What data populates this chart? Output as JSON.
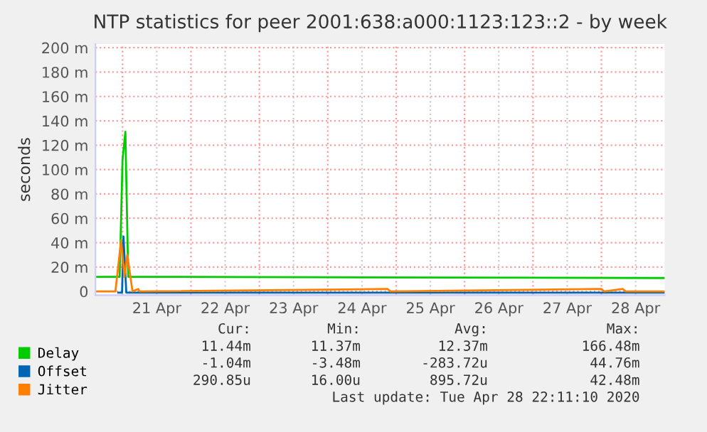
{
  "chart_data": {
    "type": "line",
    "title": "NTP statistics for peer 2001:638:a000:1123:123::2 - by week",
    "ylabel": "seconds",
    "xlim": [
      "2020-04-20T14:30",
      "2020-04-28T22:10"
    ],
    "xticks": [
      {
        "value": "2020-04-21T00:00",
        "label": null
      },
      {
        "value": "2020-04-21T12:00",
        "label": "21 Apr"
      },
      {
        "value": "2020-04-22T00:00",
        "label": null
      },
      {
        "value": "2020-04-22T12:00",
        "label": "22 Apr"
      },
      {
        "value": "2020-04-23T00:00",
        "label": null
      },
      {
        "value": "2020-04-23T12:00",
        "label": "23 Apr"
      },
      {
        "value": "2020-04-24T00:00",
        "label": null
      },
      {
        "value": "2020-04-24T12:00",
        "label": "24 Apr"
      },
      {
        "value": "2020-04-25T00:00",
        "label": null
      },
      {
        "value": "2020-04-25T12:00",
        "label": "25 Apr"
      },
      {
        "value": "2020-04-26T00:00",
        "label": null
      },
      {
        "value": "2020-04-26T12:00",
        "label": "26 Apr"
      },
      {
        "value": "2020-04-27T00:00",
        "label": null
      },
      {
        "value": "2020-04-27T12:00",
        "label": "27 Apr"
      },
      {
        "value": "2020-04-28T00:00",
        "label": null
      },
      {
        "value": "2020-04-28T12:00",
        "label": "28 Apr"
      }
    ],
    "ylim": [
      -3,
      203
    ],
    "yticks": [
      0,
      {
        "value": 20,
        "label": "20 m"
      },
      {
        "value": 40,
        "label": "40 m"
      },
      {
        "value": 60,
        "label": "60 m"
      },
      {
        "value": 80,
        "label": "80 m"
      },
      {
        "value": 100,
        "label": "100 m"
      },
      {
        "value": 120,
        "label": "120 m"
      },
      {
        "value": 140,
        "label": "140 m"
      },
      {
        "value": 160,
        "label": "160 m"
      },
      {
        "value": 180,
        "label": "180 m"
      },
      {
        "value": 200,
        "label": "200 m"
      }
    ],
    "grid": true,
    "legend": "bottom",
    "marker": "none",
    "line_style": "solid",
    "series": [
      {
        "name": "Delay",
        "color": "#00cc00",
        "x": [
          "2020-04-20T14:30",
          "2020-04-20T23:00",
          "2020-04-21T00:00",
          "2020-04-21T01:00",
          "2020-04-21T02:00",
          "2020-04-28T22:10"
        ],
        "values": [
          12,
          12,
          108,
          131,
          12,
          11
        ]
      },
      {
        "name": "Offset",
        "color": "#0066b3",
        "x": [
          "2020-04-20T22:30",
          "2020-04-20T23:50",
          "2020-04-21T00:20",
          "2020-04-21T01:20",
          "2020-04-28T22:10"
        ],
        "values": [
          -1,
          -1,
          45,
          -1,
          -1
        ]
      },
      {
        "name": "Jitter",
        "color": "#ff8000",
        "x": [
          "2020-04-20T14:30",
          "2020-04-20T21:30",
          "2020-04-20T23:30",
          "2020-04-21T00:40",
          "2020-04-21T01:40",
          "2020-04-21T03:30",
          "2020-04-21T05:30",
          "2020-04-21T06:00",
          "2020-04-24T21:00",
          "2020-04-24T22:00",
          "2020-04-28T00:00",
          "2020-04-28T01:00",
          "2020-04-28T07:30",
          "2020-04-28T08:30",
          "2020-04-28T22:10"
        ],
        "values": [
          0,
          0,
          42,
          12,
          30,
          0,
          2,
          0,
          2,
          0,
          2,
          0,
          2,
          0,
          0
        ]
      }
    ],
    "annotations": [
      "Cur:",
      "Min:",
      "Avg:",
      "Max:",
      "11.44m",
      "11.37m",
      "12.37m",
      "166.48m",
      "-1.04m",
      "-3.48m",
      "-283.72u",
      "44.76m",
      "290.85u",
      "16.00u",
      "895.72u",
      "42.48m",
      "Last update: Tue Apr 28 22:11:10 2020"
    ]
  }
}
